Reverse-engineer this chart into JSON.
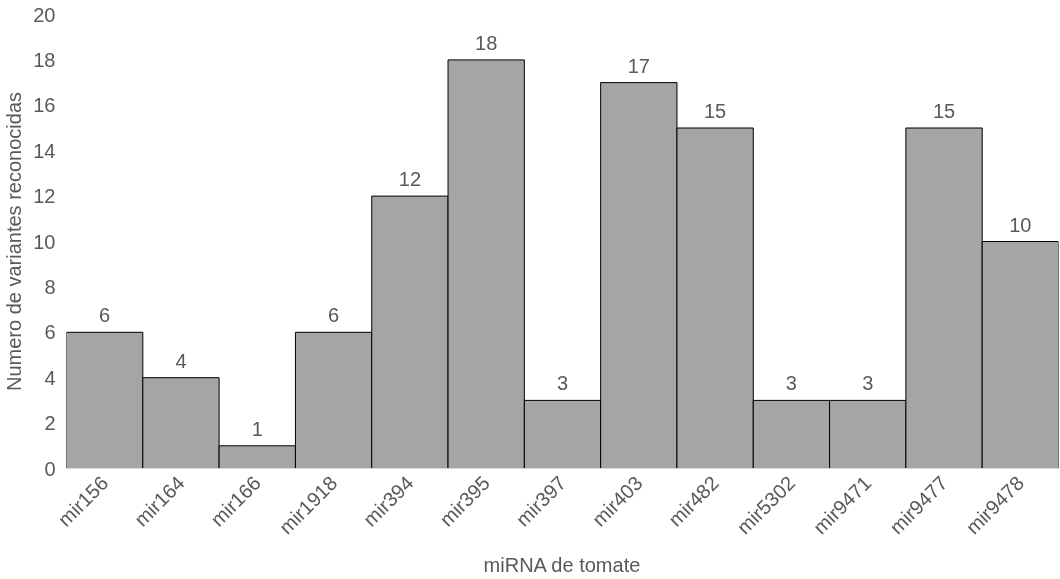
{
  "chart_data": {
    "type": "bar",
    "xlabel": "miRNA de tomate",
    "ylabel": "Numero de variantes reconocidas",
    "categories": [
      "mir156",
      "mir164",
      "mir166",
      "mir1918",
      "mir394",
      "mir395",
      "mir397",
      "mir403",
      "mir482",
      "mir5302",
      "mir9471",
      "mir9477",
      "mir9478"
    ],
    "values": [
      6,
      4,
      1,
      6,
      12,
      18,
      3,
      17,
      15,
      3,
      3,
      15,
      10
    ],
    "color": "#a5a5a5",
    "ylim": [
      0,
      20
    ],
    "yticks": [
      0,
      2,
      4,
      6,
      8,
      10,
      12,
      14,
      16,
      18,
      20
    ],
    "data_labels": true,
    "grid": false
  }
}
